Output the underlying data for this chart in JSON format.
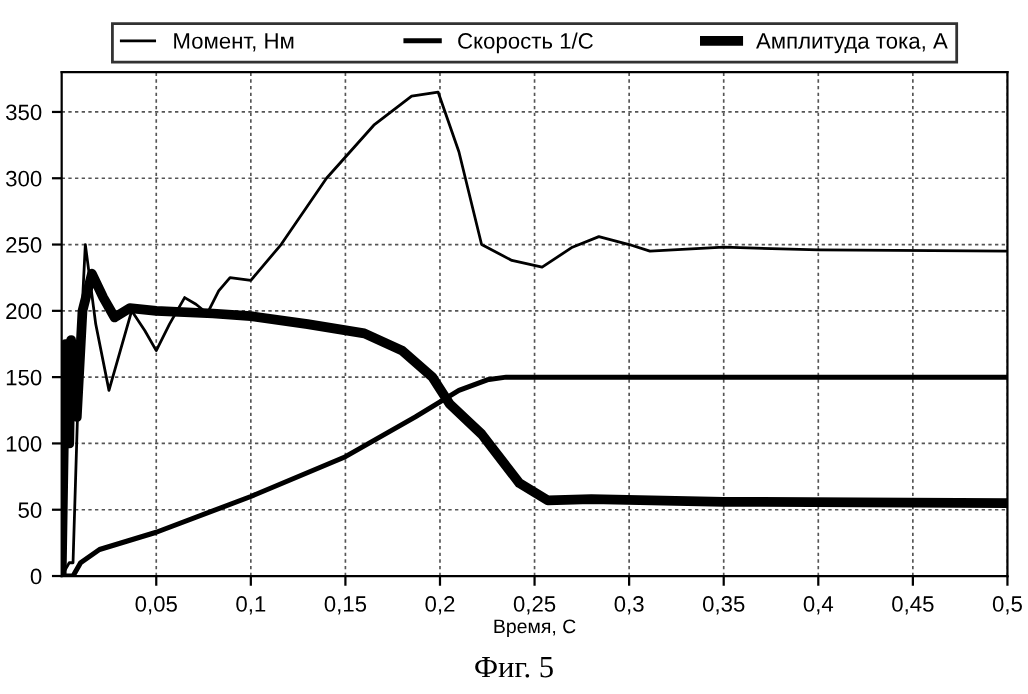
{
  "chart_data": {
    "type": "line",
    "xlabel": "Время, С",
    "annotations": [
      "Фиг. 5"
    ],
    "xlim": [
      0,
      0.5
    ],
    "ylim": [
      0,
      380
    ],
    "xticks": [
      {
        "value": 0.05,
        "label": "0,05"
      },
      {
        "value": 0.1,
        "label": "0,1"
      },
      {
        "value": 0.15,
        "label": "0,15"
      },
      {
        "value": 0.2,
        "label": "0,2"
      },
      {
        "value": 0.25,
        "label": "0,25"
      },
      {
        "value": 0.3,
        "label": "0,3"
      },
      {
        "value": 0.35,
        "label": "0,35"
      },
      {
        "value": 0.4,
        "label": "0,4"
      },
      {
        "value": 0.45,
        "label": "0,45"
      },
      {
        "value": 0.5,
        "label": "0,5"
      }
    ],
    "yticks": [
      0,
      50,
      100,
      150,
      200,
      250,
      300,
      350
    ],
    "grid": true,
    "legend": "top",
    "marker": "none",
    "line_style": "solid",
    "series": [
      {
        "name": "Момент, Нм",
        "color": "#000000",
        "x": [
          0,
          0.004,
          0.006,
          0.009,
          0.0125,
          0.018,
          0.025,
          0.031,
          0.037,
          0.044,
          0.05,
          0.057,
          0.065,
          0.071,
          0.077,
          0.083,
          0.089,
          0.1,
          0.116,
          0.14,
          0.165,
          0.185,
          0.199,
          0.21,
          0.222,
          0.238,
          0.254,
          0.27,
          0.284,
          0.3,
          0.311,
          0.35,
          0.4,
          0.5
        ],
        "values": [
          0,
          10,
          10,
          150,
          250,
          190,
          140,
          170,
          200,
          185,
          170,
          190,
          210,
          205,
          198,
          215,
          225,
          223,
          250,
          300,
          340,
          362,
          365,
          320,
          250,
          238,
          233,
          248,
          256,
          250,
          245,
          248,
          246,
          245
        ]
      },
      {
        "name": "Скорость 1/С",
        "color": "#000000",
        "x": [
          0,
          0.006,
          0.01,
          0.02,
          0.05,
          0.1,
          0.15,
          0.187,
          0.21,
          0.225,
          0.235,
          0.3,
          0.5
        ],
        "values": [
          0,
          0,
          10,
          20,
          33,
          60,
          90,
          120,
          140,
          148,
          150,
          150,
          150
        ]
      },
      {
        "name": "Амплитуда тока, А",
        "color": "#000000",
        "x": [
          0,
          0.002,
          0.004,
          0.005,
          0.008,
          0.011,
          0.016,
          0.022,
          0.028,
          0.036,
          0.05,
          0.08,
          0.1,
          0.13,
          0.16,
          0.18,
          0.196,
          0.205,
          0.222,
          0.242,
          0.257,
          0.28,
          0.35,
          0.5
        ],
        "values": [
          0,
          175,
          100,
          178,
          120,
          200,
          228,
          210,
          195,
          202,
          200,
          198,
          196,
          190,
          183,
          170,
          150,
          130,
          107,
          70,
          57,
          58,
          56,
          55
        ]
      }
    ]
  }
}
